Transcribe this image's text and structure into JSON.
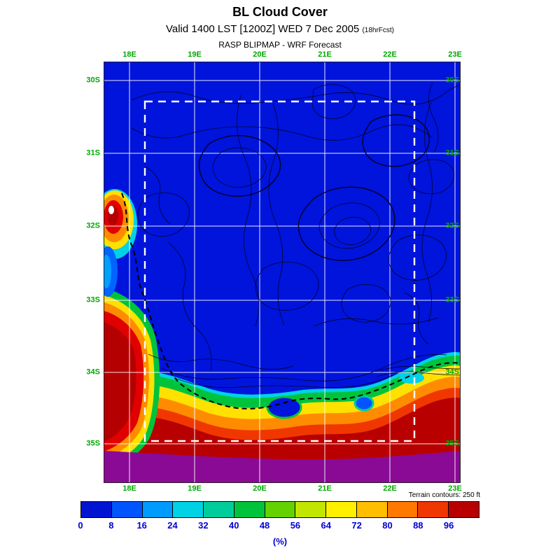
{
  "header": {
    "title": "BL Cloud Cover",
    "valid": "Valid 1400 LST [1200Z] WED 7 Dec 2005",
    "fcst": "(18hrFcst)",
    "model": "RASP BLIPMAP - WRF Forecast"
  },
  "map": {
    "lon_labels": [
      "18E",
      "19E",
      "20E",
      "21E",
      "22E",
      "23E"
    ],
    "lat_labels": [
      "30S",
      "31S",
      "32S",
      "33S",
      "34S",
      "35S"
    ],
    "axis_label_color": "#00a800",
    "ocean_low_cloud_blue": "#0014dc",
    "overcast_purple": "#8a0a96",
    "grid_color": "#ffffff",
    "inner_domain_box_color": "#ffffff",
    "contour_color": "#000000"
  },
  "footnote": "Terrain contours: 250 ft",
  "colorbar": {
    "tick_labels": [
      "0",
      "8",
      "16",
      "24",
      "32",
      "40",
      "48",
      "56",
      "64",
      "72",
      "80",
      "88",
      "96"
    ],
    "unit": "(%)",
    "cell_colors": [
      "#0014d2",
      "#0055ff",
      "#009bff",
      "#00d2e6",
      "#00cd9b",
      "#00c33c",
      "#64d200",
      "#c3e600",
      "#fff000",
      "#ffbe00",
      "#ff7800",
      "#f03700",
      "#b90000"
    ]
  },
  "chart_data": {
    "type": "heatmap",
    "title": "BL Cloud Cover",
    "subtitle": "Valid 1400 LST [1200Z] WED 7 Dec 2005 (18hrFcst)",
    "source": "RASP BLIPMAP - WRF Forecast",
    "x_axis": {
      "ticks": [
        "18E",
        "19E",
        "20E",
        "21E",
        "22E",
        "23E"
      ]
    },
    "y_axis": {
      "ticks": [
        "30S",
        "31S",
        "32S",
        "33S",
        "34S",
        "35S"
      ]
    },
    "colorbar": {
      "unit": "(%)",
      "tick_values": [
        0,
        8,
        16,
        24,
        32,
        40,
        48,
        56,
        64,
        72,
        80,
        88,
        96
      ],
      "colors": [
        "#0014d2",
        "#0055ff",
        "#009bff",
        "#00d2e6",
        "#00cd9b",
        "#00c33c",
        "#64d200",
        "#c3e600",
        "#fff000",
        "#ffbe00",
        "#ff7800",
        "#f03700",
        "#b90000"
      ]
    },
    "annotations": [
      "Terrain contours: 250 ft"
    ],
    "estimated_regions": [
      {
        "area": "interior and most of domain (north of ~34.5S)",
        "cloud_cover_pct": "0-8"
      },
      {
        "area": "band along the south coast ~34.5S-35.2S, 18.5E-23E",
        "cloud_cover_pct": "40-96"
      },
      {
        "area": "offshore strip south of ~35.2S (full width)",
        "cloud_cover_pct": "96-100 (purple, overcast)"
      },
      {
        "area": "west coast blob near 18E, 32S",
        "cloud_cover_pct": "72-100"
      },
      {
        "area": "southwest corner 18E, 33.2S-35S",
        "cloud_cover_pct": "88-100"
      }
    ],
    "overlays": [
      "white dashed inner-domain rectangle",
      "black dashed coastline",
      "black terrain contour lines at 250 ft interval",
      "white lat/lon graticule every 1 degree"
    ]
  }
}
